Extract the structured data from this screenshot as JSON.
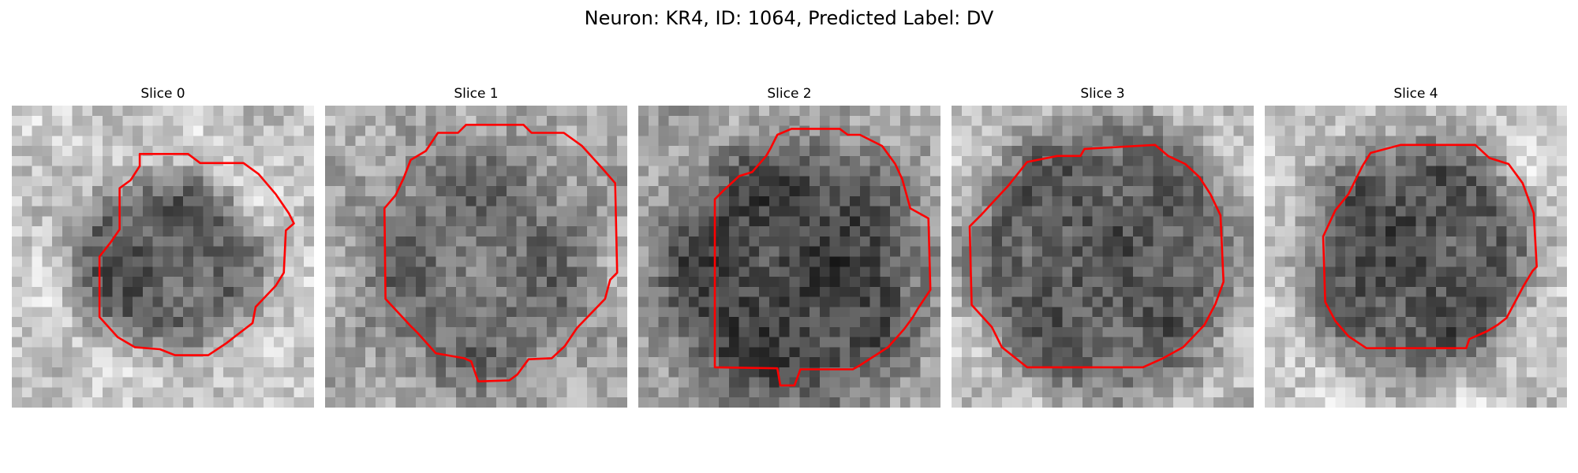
{
  "title": "Neuron: KR4, ID: 1064, Predicted Label: DV",
  "outline_color": "#ff0000",
  "panels": [
    {
      "title": "Slice 0"
    },
    {
      "title": "Slice 1"
    },
    {
      "title": "Slice 2"
    },
    {
      "title": "Slice 3"
    },
    {
      "title": "Slice 4"
    }
  ]
}
